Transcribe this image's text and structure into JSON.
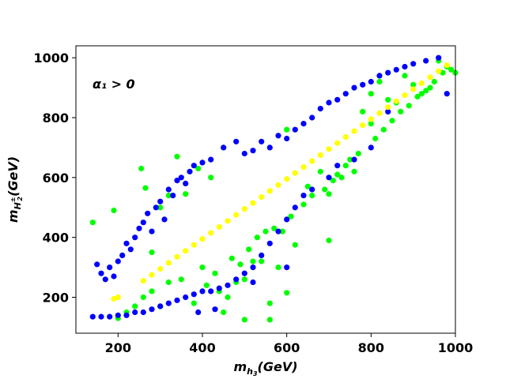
{
  "chart_data": {
    "type": "scatter",
    "title": "",
    "xlabel": "m_{h_3}(GeV)",
    "ylabel": "m_{H_2^±}(GeV)",
    "xlim": [
      100,
      1000
    ],
    "ylim": [
      80,
      1040
    ],
    "xticks": [
      200,
      400,
      600,
      800,
      1000
    ],
    "yticks": [
      200,
      400,
      600,
      800,
      1000
    ],
    "annotation": "α₁ > 0",
    "grid": false,
    "series": [
      {
        "color": "#00ff00",
        "points": [
          [
            140,
            450
          ],
          [
            190,
            490
          ],
          [
            255,
            630
          ],
          [
            265,
            565
          ],
          [
            280,
            350
          ],
          [
            300,
            500
          ],
          [
            320,
            540
          ],
          [
            340,
            670
          ],
          [
            360,
            545
          ],
          [
            390,
            630
          ],
          [
            400,
            300
          ],
          [
            420,
            600
          ],
          [
            440,
            220
          ],
          [
            450,
            150
          ],
          [
            460,
            200
          ],
          [
            480,
            250
          ],
          [
            500,
            260
          ],
          [
            500,
            125
          ],
          [
            520,
            320
          ],
          [
            540,
            320
          ],
          [
            560,
            180
          ],
          [
            560,
            125
          ],
          [
            580,
            300
          ],
          [
            590,
            420
          ],
          [
            600,
            760
          ],
          [
            600,
            215
          ],
          [
            620,
            375
          ],
          [
            650,
            570
          ],
          [
            680,
            620
          ],
          [
            700,
            545
          ],
          [
            700,
            390
          ],
          [
            720,
            610
          ],
          [
            740,
            640
          ],
          [
            750,
            660
          ],
          [
            760,
            620
          ],
          [
            780,
            820
          ],
          [
            800,
            880
          ],
          [
            800,
            780
          ],
          [
            820,
            920
          ],
          [
            840,
            860
          ],
          [
            860,
            850
          ],
          [
            880,
            940
          ],
          [
            900,
            910
          ],
          [
            920,
            880
          ],
          [
            940,
            900
          ],
          [
            960,
            990
          ],
          [
            990,
            960
          ],
          [
            1000,
            950
          ],
          [
            200,
            130
          ],
          [
            220,
            150
          ],
          [
            240,
            170
          ],
          [
            260,
            200
          ],
          [
            280,
            220
          ],
          [
            300,
            170
          ],
          [
            320,
            250
          ],
          [
            350,
            260
          ],
          [
            380,
            180
          ],
          [
            410,
            240
          ],
          [
            430,
            280
          ],
          [
            470,
            330
          ],
          [
            490,
            310
          ],
          [
            510,
            360
          ],
          [
            530,
            400
          ],
          [
            550,
            420
          ],
          [
            570,
            430
          ],
          [
            610,
            470
          ],
          [
            640,
            510
          ],
          [
            660,
            540
          ],
          [
            690,
            560
          ],
          [
            710,
            590
          ],
          [
            730,
            600
          ],
          [
            770,
            680
          ],
          [
            810,
            730
          ],
          [
            830,
            760
          ],
          [
            850,
            790
          ],
          [
            870,
            820
          ],
          [
            890,
            840
          ],
          [
            910,
            870
          ],
          [
            930,
            890
          ],
          [
            950,
            920
          ],
          [
            970,
            950
          ],
          [
            980,
            970
          ]
        ]
      },
      {
        "color": "#0000ff",
        "points": [
          [
            150,
            310
          ],
          [
            160,
            280
          ],
          [
            170,
            260
          ],
          [
            180,
            300
          ],
          [
            190,
            270
          ],
          [
            200,
            320
          ],
          [
            210,
            340
          ],
          [
            220,
            380
          ],
          [
            230,
            360
          ],
          [
            240,
            400
          ],
          [
            250,
            430
          ],
          [
            260,
            450
          ],
          [
            270,
            480
          ],
          [
            280,
            420
          ],
          [
            290,
            500
          ],
          [
            300,
            520
          ],
          [
            310,
            460
          ],
          [
            320,
            560
          ],
          [
            330,
            540
          ],
          [
            340,
            590
          ],
          [
            350,
            600
          ],
          [
            360,
            580
          ],
          [
            370,
            620
          ],
          [
            380,
            640
          ],
          [
            400,
            650
          ],
          [
            420,
            660
          ],
          [
            450,
            700
          ],
          [
            480,
            720
          ],
          [
            500,
            680
          ],
          [
            520,
            690
          ],
          [
            540,
            720
          ],
          [
            560,
            700
          ],
          [
            580,
            740
          ],
          [
            600,
            730
          ],
          [
            620,
            760
          ],
          [
            640,
            780
          ],
          [
            660,
            800
          ],
          [
            680,
            830
          ],
          [
            700,
            850
          ],
          [
            720,
            860
          ],
          [
            740,
            880
          ],
          [
            760,
            900
          ],
          [
            780,
            910
          ],
          [
            800,
            920
          ],
          [
            820,
            940
          ],
          [
            840,
            950
          ],
          [
            860,
            960
          ],
          [
            880,
            970
          ],
          [
            900,
            980
          ],
          [
            930,
            990
          ],
          [
            960,
            1000
          ],
          [
            980,
            880
          ],
          [
            840,
            820
          ],
          [
            800,
            700
          ],
          [
            760,
            660
          ],
          [
            720,
            640
          ],
          [
            700,
            600
          ],
          [
            660,
            560
          ],
          [
            640,
            540
          ],
          [
            620,
            500
          ],
          [
            600,
            460
          ],
          [
            580,
            420
          ],
          [
            560,
            380
          ],
          [
            540,
            340
          ],
          [
            520,
            300
          ],
          [
            500,
            280
          ],
          [
            480,
            260
          ],
          [
            460,
            240
          ],
          [
            440,
            230
          ],
          [
            420,
            220
          ],
          [
            400,
            220
          ],
          [
            380,
            210
          ],
          [
            360,
            200
          ],
          [
            340,
            190
          ],
          [
            320,
            180
          ],
          [
            300,
            170
          ],
          [
            280,
            160
          ],
          [
            260,
            150
          ],
          [
            240,
            150
          ],
          [
            220,
            140
          ],
          [
            200,
            140
          ],
          [
            180,
            135
          ],
          [
            160,
            135
          ],
          [
            140,
            135
          ],
          [
            430,
            160
          ],
          [
            390,
            150
          ],
          [
            520,
            250
          ],
          [
            600,
            300
          ]
        ]
      },
      {
        "color": "#ffff00",
        "points": [
          [
            190,
            195
          ],
          [
            200,
            200
          ],
          [
            260,
            255
          ],
          [
            280,
            275
          ],
          [
            300,
            295
          ],
          [
            320,
            315
          ],
          [
            340,
            335
          ],
          [
            360,
            355
          ],
          [
            380,
            375
          ],
          [
            400,
            395
          ],
          [
            420,
            415
          ],
          [
            440,
            435
          ],
          [
            460,
            455
          ],
          [
            480,
            475
          ],
          [
            500,
            495
          ],
          [
            520,
            515
          ],
          [
            540,
            535
          ],
          [
            560,
            555
          ],
          [
            580,
            575
          ],
          [
            600,
            595
          ],
          [
            620,
            615
          ],
          [
            640,
            635
          ],
          [
            660,
            655
          ],
          [
            680,
            675
          ],
          [
            700,
            695
          ],
          [
            720,
            715
          ],
          [
            740,
            735
          ],
          [
            760,
            755
          ],
          [
            780,
            775
          ],
          [
            800,
            795
          ],
          [
            820,
            815
          ],
          [
            840,
            835
          ],
          [
            860,
            855
          ],
          [
            880,
            875
          ],
          [
            900,
            895
          ],
          [
            920,
            915
          ],
          [
            940,
            935
          ],
          [
            960,
            955
          ],
          [
            980,
            975
          ]
        ]
      }
    ]
  }
}
